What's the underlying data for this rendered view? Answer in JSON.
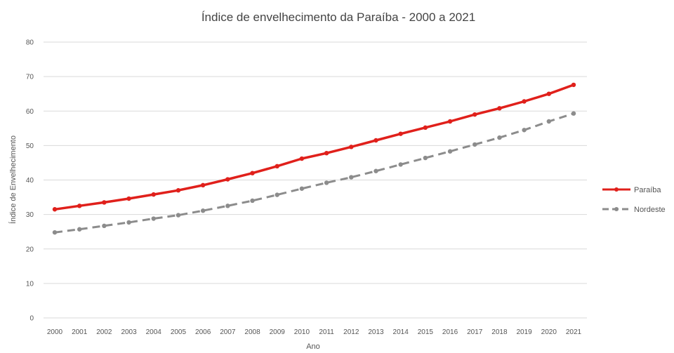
{
  "chart_data": {
    "type": "line",
    "title": "Índice de envelhecimento da Paraíba - 2000 a 2021",
    "xlabel": "Ano",
    "ylabel": "Índice de Envelhecimento",
    "categories": [
      "2000",
      "2001",
      "2002",
      "2003",
      "2004",
      "2005",
      "2006",
      "2007",
      "2008",
      "2009",
      "2010",
      "2011",
      "2012",
      "2013",
      "2014",
      "2015",
      "2016",
      "2017",
      "2018",
      "2019",
      "2020",
      "2021"
    ],
    "ylim": [
      0,
      80
    ],
    "yticks": [
      "0",
      "10",
      "20",
      "30",
      "40",
      "50",
      "60",
      "70",
      "80"
    ],
    "grid": true,
    "legend_position": "right",
    "series": [
      {
        "name": "Paraíba",
        "color": "#e0201b",
        "style": "solid",
        "values": [
          31.5,
          32.5,
          33.5,
          34.6,
          35.8,
          37.0,
          38.5,
          40.2,
          42.0,
          44.0,
          46.2,
          47.8,
          49.6,
          51.5,
          53.4,
          55.2,
          57.0,
          59.0,
          60.8,
          62.8,
          65.0,
          67.6
        ]
      },
      {
        "name": "Nordeste",
        "color": "#8c8c8c",
        "style": "dashed",
        "values": [
          24.8,
          25.7,
          26.7,
          27.7,
          28.8,
          29.8,
          31.1,
          32.5,
          34.0,
          35.7,
          37.5,
          39.2,
          40.8,
          42.6,
          44.5,
          46.4,
          48.3,
          50.3,
          52.3,
          54.5,
          57.0,
          59.3
        ]
      }
    ]
  }
}
